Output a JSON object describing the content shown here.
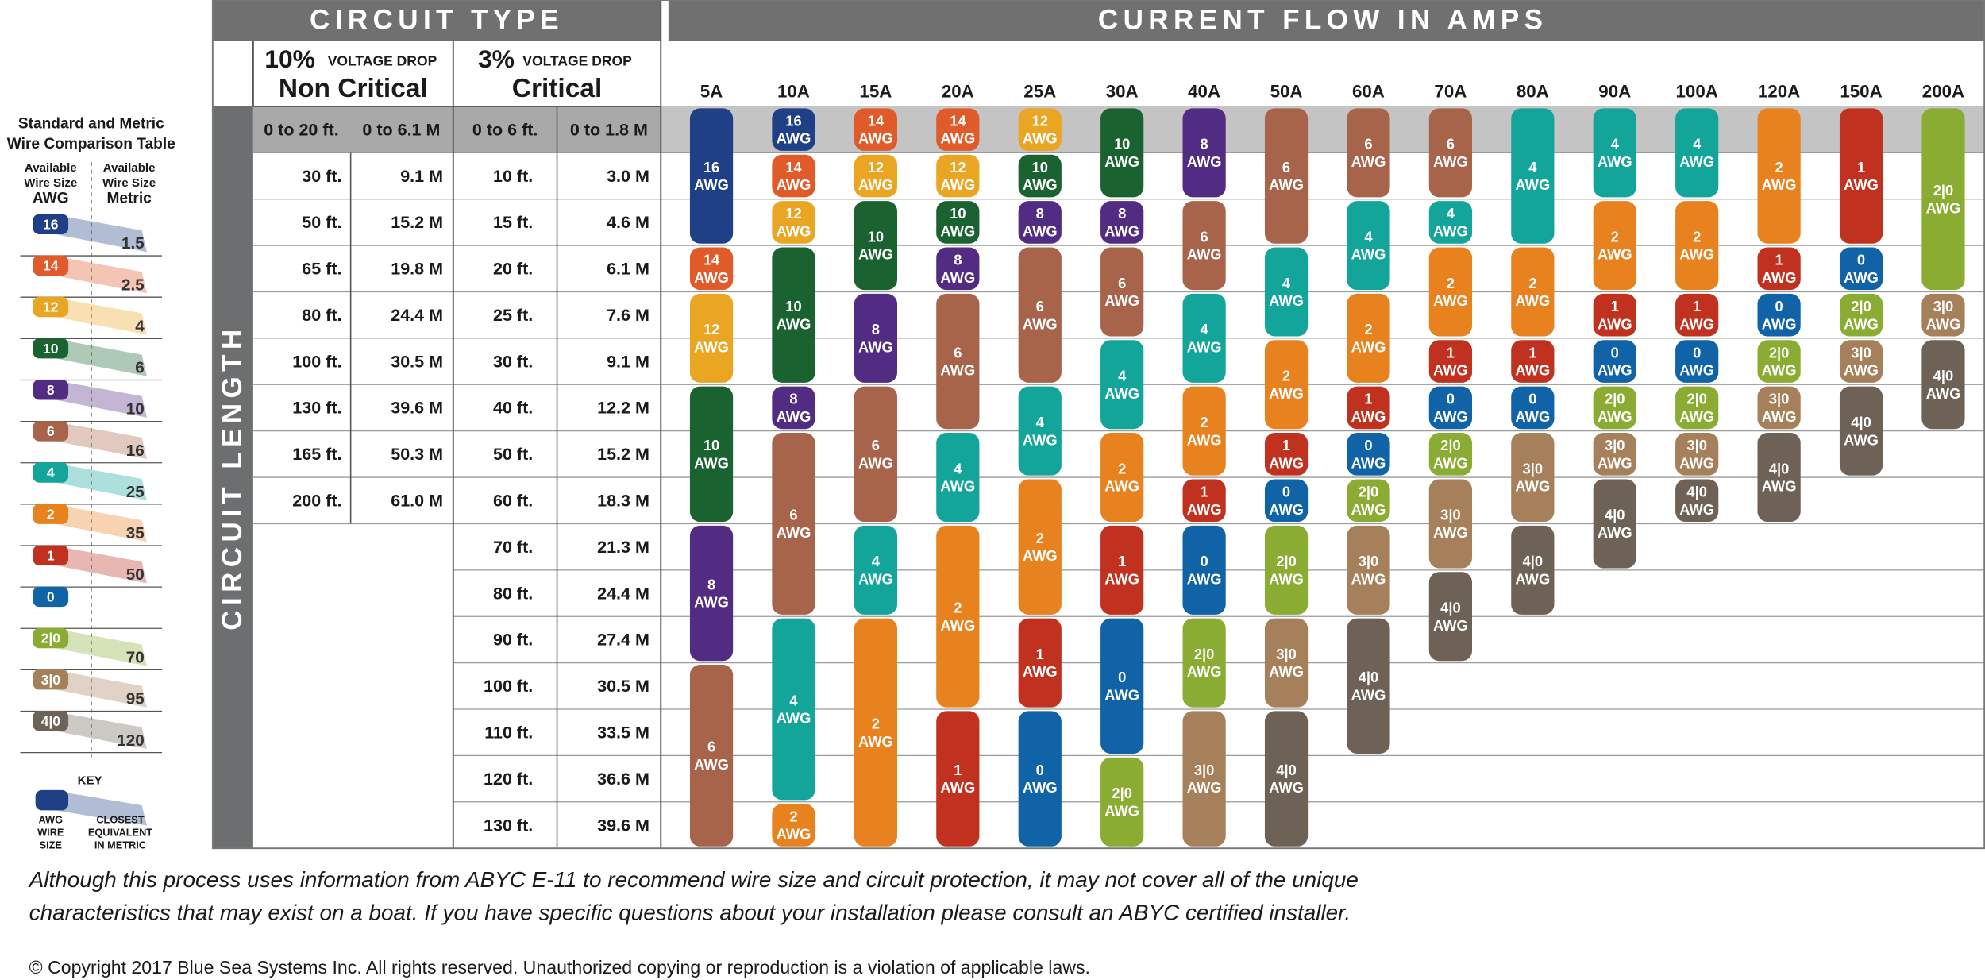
{
  "legend": {
    "title": [
      "Standard and Metric",
      "Wire Comparison Table"
    ],
    "awg_header": [
      "Available",
      "Wire Size",
      "AWG"
    ],
    "metric_header": [
      "Available",
      "Wire Size",
      "Metric"
    ],
    "rows": [
      {
        "awg": "16",
        "metric": "1.5"
      },
      {
        "awg": "14",
        "metric": "2.5"
      },
      {
        "awg": "12",
        "metric": "4"
      },
      {
        "awg": "10",
        "metric": "6"
      },
      {
        "awg": "8",
        "metric": "10"
      },
      {
        "awg": "6",
        "metric": "16"
      },
      {
        "awg": "4",
        "metric": "25"
      },
      {
        "awg": "2",
        "metric": "35"
      },
      {
        "awg": "1",
        "metric": "50"
      },
      {
        "awg": "0"
      },
      {
        "awg": "2|0",
        "metric": "70"
      },
      {
        "awg": "3|0",
        "metric": "95"
      },
      {
        "awg": "4|0",
        "metric": "120"
      }
    ]
  },
  "key": {
    "title": "KEY",
    "awg": [
      "AWG",
      "WIRE",
      "SIZE"
    ],
    "metric": [
      "CLOSEST",
      "EQUIVALENT",
      "IN METRIC"
    ]
  },
  "header": {
    "circuit_type": "CIRCUIT TYPE",
    "current_flow": "CURRENT FLOW IN AMPS",
    "circuit_length": "CIRCUIT LENGTH"
  },
  "non_critical": {
    "percent": "10%",
    "drop": "VOLTAGE DROP",
    "label": "Non Critical",
    "rows": [
      [
        "0 to 20 ft.",
        "0 to 6.1 M"
      ],
      [
        "30 ft.",
        "9.1 M"
      ],
      [
        "50 ft.",
        "15.2 M"
      ],
      [
        "65 ft.",
        "19.8 M"
      ],
      [
        "80 ft.",
        "24.4 M"
      ],
      [
        "100 ft.",
        "30.5 M"
      ],
      [
        "130 ft.",
        "39.6 M"
      ],
      [
        "165 ft.",
        "50.3 M"
      ],
      [
        "200 ft.",
        "61.0 M"
      ]
    ]
  },
  "critical": {
    "percent": "3%",
    "drop": "VOLTAGE DROP",
    "label": "Critical",
    "rows": [
      [
        "0 to 6 ft.",
        "0 to 1.8 M"
      ],
      [
        "10 ft.",
        "3.0 M"
      ],
      [
        "15 ft.",
        "4.6 M"
      ],
      [
        "20 ft.",
        "6.1 M"
      ],
      [
        "25 ft.",
        "7.6 M"
      ],
      [
        "30 ft.",
        "9.1 M"
      ],
      [
        "40 ft.",
        "12.2 M"
      ],
      [
        "50 ft.",
        "15.2 M"
      ],
      [
        "60 ft.",
        "18.3 M"
      ],
      [
        "70 ft.",
        "21.3 M"
      ],
      [
        "80 ft.",
        "24.4 M"
      ],
      [
        "90 ft.",
        "27.4 M"
      ],
      [
        "100 ft.",
        "30.5 M"
      ],
      [
        "110 ft.",
        "33.5 M"
      ],
      [
        "120 ft.",
        "36.6 M"
      ],
      [
        "130 ft.",
        "39.6 M"
      ]
    ]
  },
  "unit": "AWG",
  "colors": {
    "16": "#1f3f87",
    "14": "#e05a2a",
    "12": "#eaa523",
    "10": "#1a6331",
    "8": "#522c82",
    "6": "#a8634b",
    "4": "#14a59a",
    "2": "#e8821f",
    "1": "#c0311f",
    "0": "#0f63a6",
    "2|0": "#8aac32",
    "3|0": "#a5805a",
    "4|0": "#6e6156"
  },
  "columns": [
    {
      "amps": "5A",
      "cells": [
        "16",
        "16",
        "16",
        "14",
        "12",
        "12",
        "10",
        "10",
        "10",
        "8",
        "8",
        "8",
        "6",
        "6",
        "6",
        "6"
      ]
    },
    {
      "amps": "10A",
      "cells": [
        "16",
        "14",
        "12",
        "10",
        "10",
        "10",
        "8",
        "6",
        "6",
        "6",
        "6",
        "4",
        "4",
        "4",
        "4",
        "2"
      ]
    },
    {
      "amps": "15A",
      "cells": [
        "14",
        "12",
        "10",
        "10",
        "8",
        "8",
        "6",
        "6",
        "6",
        "4",
        "4",
        "2",
        "2",
        "2",
        "2",
        "2"
      ]
    },
    {
      "amps": "20A",
      "cells": [
        "14",
        "12",
        "10",
        "8",
        "6",
        "6",
        "6",
        "4",
        "4",
        "2",
        "2",
        "2",
        "2",
        "1",
        "1",
        "1"
      ]
    },
    {
      "amps": "25A",
      "cells": [
        "12",
        "10",
        "8",
        "6",
        "6",
        "6",
        "4",
        "4",
        "2",
        "2",
        "2",
        "1",
        "1",
        "0",
        "0",
        "0"
      ]
    },
    {
      "amps": "30A",
      "cells": [
        "10",
        "10",
        "8",
        "6",
        "6",
        "4",
        "4",
        "2",
        "2",
        "1",
        "1",
        "0",
        "0",
        "0",
        "2|0",
        "2|0"
      ]
    },
    {
      "amps": "40A",
      "cells": [
        "8",
        "8",
        "6",
        "6",
        "4",
        "4",
        "2",
        "2",
        "1",
        "0",
        "0",
        "2|0",
        "2|0",
        "3|0",
        "3|0",
        "3|0"
      ]
    },
    {
      "amps": "50A",
      "cells": [
        "6",
        "6",
        "6",
        "4",
        "4",
        "2",
        "2",
        "1",
        "0",
        "2|0",
        "2|0",
        "3|0",
        "3|0",
        "4|0",
        "4|0",
        "4|0"
      ]
    },
    {
      "amps": "60A",
      "cells": [
        "6",
        "6",
        "4",
        "4",
        "2",
        "2",
        "1",
        "0",
        "2|0",
        "3|0",
        "3|0",
        "4|0",
        "4|0",
        "4|0",
        null,
        null
      ]
    },
    {
      "amps": "70A",
      "cells": [
        "6",
        "6",
        "4",
        "2",
        "2",
        "1",
        "0",
        "2|0",
        "3|0",
        "3|0",
        "4|0",
        "4|0",
        null,
        null,
        null,
        null
      ]
    },
    {
      "amps": "80A",
      "cells": [
        "4",
        "4",
        "4",
        "2",
        "2",
        "1",
        "0",
        "3|0",
        "3|0",
        "4|0",
        "4|0",
        null,
        null,
        null,
        null,
        null
      ]
    },
    {
      "amps": "90A",
      "cells": [
        "4",
        "4",
        "2",
        "2",
        "1",
        "0",
        "2|0",
        "3|0",
        "4|0",
        "4|0",
        null,
        null,
        null,
        null,
        null,
        null
      ]
    },
    {
      "amps": "100A",
      "cells": [
        "4",
        "4",
        "2",
        "2",
        "1",
        "0",
        "2|0",
        "3|0",
        "4|0",
        null,
        null,
        null,
        null,
        null,
        null,
        null
      ]
    },
    {
      "amps": "120A",
      "cells": [
        "2",
        "2",
        "2",
        "1",
        "0",
        "2|0",
        "3|0",
        "4|0",
        "4|0",
        null,
        null,
        null,
        null,
        null,
        null,
        null
      ]
    },
    {
      "amps": "150A",
      "cells": [
        "1",
        "1",
        "1",
        "0",
        "2|0",
        "3|0",
        "4|0",
        "4|0",
        null,
        null,
        null,
        null,
        null,
        null,
        null,
        null
      ]
    },
    {
      "amps": "200A",
      "cells": [
        "2|0",
        "2|0",
        "2|0",
        "2|0",
        "3|0",
        "4|0",
        "4|0",
        null,
        null,
        null,
        null,
        null,
        null,
        null,
        null,
        null
      ]
    }
  ],
  "disclaimer": [
    "Although this process uses information from ABYC E-11 to recommend wire size and circuit protection, it may not cover all of the unique",
    "characteristics that may exist on a boat. If you have specific questions about your installation please consult an ABYC certified installer."
  ],
  "copyright": "© Copyright 2017 Blue Sea Systems Inc. All rights reserved. Unauthorized copying or reproduction is a violation of applicable laws."
}
